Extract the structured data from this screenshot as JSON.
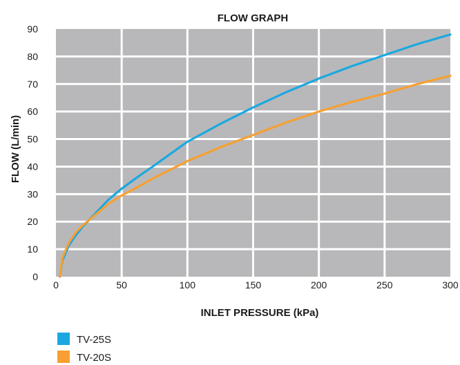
{
  "chart_data": {
    "type": "line",
    "title": "FLOW GRAPH",
    "xlabel": "INLET PRESSURE (kPa)",
    "ylabel": "FLOW (L/min)",
    "xlim": [
      0,
      300
    ],
    "ylim": [
      0,
      90
    ],
    "xticks": [
      "0",
      "50",
      "100",
      "150",
      "200",
      "250",
      "300"
    ],
    "yticks": [
      "0",
      "10",
      "20",
      "30",
      "40",
      "50",
      "60",
      "70",
      "80",
      "90"
    ],
    "grid": true,
    "legend_position": "bottom-left",
    "series": [
      {
        "name": "TV-25S",
        "color": "#1ba8e0",
        "x": [
          3,
          5,
          10,
          15,
          20,
          30,
          40,
          50,
          60,
          75,
          100,
          125,
          150,
          175,
          200,
          225,
          250,
          275,
          300
        ],
        "y": [
          0,
          6,
          11.5,
          15,
          18,
          23,
          28,
          32,
          35.5,
          40.5,
          49,
          55.5,
          61.5,
          67,
          72,
          76.5,
          80.5,
          84.5,
          88
        ]
      },
      {
        "name": "TV-20S",
        "color": "#f6a033",
        "x": [
          3,
          5,
          10,
          15,
          20,
          30,
          40,
          50,
          60,
          75,
          100,
          125,
          150,
          175,
          200,
          225,
          250,
          275,
          300
        ],
        "y": [
          0,
          7,
          12.5,
          16,
          18.5,
          22.5,
          26.5,
          29.5,
          32,
          36,
          42,
          47,
          51.5,
          56,
          60,
          63.5,
          66.5,
          70,
          73
        ]
      }
    ],
    "plot_bg": "#b8b8ba",
    "grid_color": "#ffffff"
  }
}
